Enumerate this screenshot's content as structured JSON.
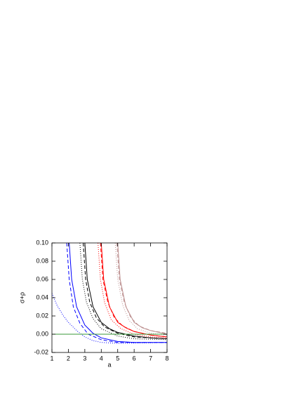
{
  "chart_data": {
    "type": "line",
    "xlabel": "a",
    "ylabel": "σ+ρ",
    "xlim": [
      1,
      8
    ],
    "ylim": [
      -0.02,
      0.1
    ],
    "xticks": [
      1,
      2,
      3,
      4,
      5,
      6,
      7,
      8
    ],
    "yticks": [
      {
        "value": -0.02,
        "label": "-0.02"
      },
      {
        "value": 0,
        "label": "0.00"
      },
      {
        "value": 0.02,
        "label": "0.02"
      },
      {
        "value": 0.04,
        "label": "0.04"
      },
      {
        "value": 0.06,
        "label": "0.06"
      },
      {
        "value": 0.08,
        "label": "0.08"
      },
      {
        "value": 0.1,
        "label": "0.10"
      }
    ],
    "series": [
      {
        "color": "#0000ff",
        "dash": "solid",
        "x": [
          2.05,
          2.2,
          2.5,
          3,
          3.5,
          4,
          5,
          6,
          8
        ],
        "values": [
          0.1,
          0.06,
          0.03,
          0.01,
          0.001,
          -0.004,
          -0.008,
          -0.009,
          -0.009
        ]
      },
      {
        "color": "#0000ff",
        "dash": "dashed",
        "x": [
          1.9,
          2.05,
          2.3,
          2.7,
          3.2,
          4,
          5,
          8
        ],
        "values": [
          0.1,
          0.06,
          0.03,
          0.012,
          0.0,
          -0.006,
          -0.009,
          -0.009
        ]
      },
      {
        "color": "#0000ff",
        "dash": "dotted",
        "x": [
          1,
          1.3,
          1.7,
          2,
          2.5,
          3,
          3.5,
          4,
          5,
          8
        ],
        "values": [
          0.045,
          0.032,
          0.02,
          0.013,
          0.004,
          -0.003,
          -0.007,
          -0.009,
          -0.01,
          -0.009
        ]
      },
      {
        "color": "#000000",
        "dash": "solid",
        "x": [
          3.0,
          3.15,
          3.5,
          4,
          4.5,
          5,
          6,
          7,
          8
        ],
        "values": [
          0.1,
          0.06,
          0.03,
          0.013,
          0.006,
          0.002,
          -0.002,
          -0.004,
          -0.005
        ]
      },
      {
        "color": "#000000",
        "dash": "dashed",
        "x": [
          2.9,
          3.05,
          3.3,
          3.7,
          4.2,
          5,
          6,
          8
        ],
        "values": [
          0.1,
          0.06,
          0.035,
          0.018,
          0.008,
          0.001,
          -0.003,
          -0.005
        ]
      },
      {
        "color": "#000000",
        "dash": "dotted",
        "x": [
          2.7,
          2.85,
          3.1,
          3.5,
          4,
          5,
          6,
          8
        ],
        "values": [
          0.1,
          0.06,
          0.035,
          0.017,
          0.006,
          -0.002,
          -0.005,
          -0.006
        ]
      },
      {
        "color": "#ff0000",
        "dash": "solid",
        "x": [
          4.0,
          4.15,
          4.5,
          5,
          5.5,
          6,
          7,
          8
        ],
        "values": [
          0.1,
          0.06,
          0.03,
          0.013,
          0.007,
          0.003,
          -0.001,
          -0.003
        ]
      },
      {
        "color": "#ff0000",
        "dash": "dashed",
        "x": [
          3.95,
          4.1,
          4.4,
          4.8,
          5.3,
          6,
          7,
          8
        ],
        "values": [
          0.1,
          0.06,
          0.035,
          0.018,
          0.009,
          0.003,
          -0.001,
          -0.003
        ]
      },
      {
        "color": "#ff0000",
        "dash": "dotted",
        "x": [
          3.8,
          3.95,
          4.2,
          4.6,
          5.2,
          6,
          7,
          8
        ],
        "values": [
          0.1,
          0.06,
          0.035,
          0.016,
          0.006,
          0.0,
          -0.003,
          -0.004
        ]
      },
      {
        "color": "#bc8f8f",
        "dash": "solid",
        "x": [
          5.0,
          5.15,
          5.5,
          6,
          6.5,
          7,
          8
        ],
        "values": [
          0.1,
          0.06,
          0.03,
          0.013,
          0.007,
          0.004,
          0.0
        ]
      },
      {
        "color": "#bc8f8f",
        "dash": "dashed",
        "x": [
          4.95,
          5.1,
          5.4,
          5.8,
          6.3,
          7,
          8
        ],
        "values": [
          0.1,
          0.06,
          0.035,
          0.018,
          0.009,
          0.004,
          0.001
        ]
      },
      {
        "color": "#bc8f8f",
        "dash": "dotted",
        "x": [
          4.85,
          5.0,
          5.3,
          5.7,
          6.2,
          7,
          8
        ],
        "values": [
          0.1,
          0.06,
          0.032,
          0.015,
          0.006,
          0.001,
          -0.001
        ]
      },
      {
        "color": "#3a9a3a",
        "dash": "solid",
        "x": [
          1,
          8
        ],
        "values": [
          0,
          0
        ]
      }
    ]
  }
}
